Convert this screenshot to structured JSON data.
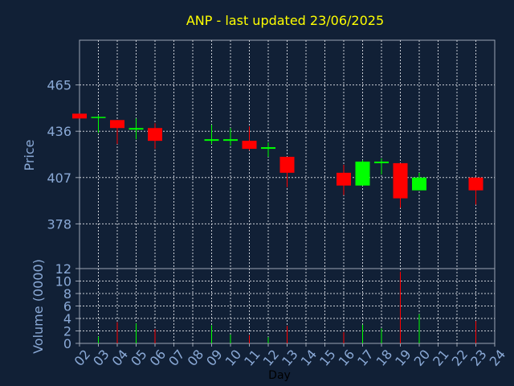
{
  "chart_data": [
    {
      "type": "candlestick",
      "title": "ANP - last updated 23/06/2025",
      "ylabel": "Price",
      "ylim": [
        350,
        493
      ],
      "yticks": [
        378,
        407,
        436,
        465
      ],
      "grid": true,
      "colors": {
        "up": "#00ff00",
        "down": "#ff0000",
        "background": "#112036",
        "title": "#ffff00",
        "axis_text": "#8aa9d6"
      },
      "ohlc": [
        {
          "day": "02",
          "open": 447,
          "high": 447,
          "low": 444,
          "close": 444
        },
        {
          "day": "03",
          "open": 445,
          "high": 446,
          "low": 435,
          "close": 445
        },
        {
          "day": "04",
          "open": 443,
          "high": 443,
          "low": 428,
          "close": 438
        },
        {
          "day": "05",
          "open": 437,
          "high": 444,
          "low": 431,
          "close": 438
        },
        {
          "day": "06",
          "open": 438,
          "high": 441,
          "low": 425,
          "close": 430
        },
        {
          "day": "09",
          "open": 430,
          "high": 440,
          "low": 428,
          "close": 431
        },
        {
          "day": "10",
          "open": 430,
          "high": 438,
          "low": 427,
          "close": 431
        },
        {
          "day": "11",
          "open": 430,
          "high": 439,
          "low": 424,
          "close": 425
        },
        {
          "day": "12",
          "open": 425,
          "high": 429,
          "low": 420,
          "close": 426
        },
        {
          "day": "13",
          "open": 420,
          "high": 420,
          "low": 401,
          "close": 410
        },
        {
          "day": "16",
          "open": 410,
          "high": 415,
          "low": 396,
          "close": 402
        },
        {
          "day": "17",
          "open": 402,
          "high": 418,
          "low": 402,
          "close": 417
        },
        {
          "day": "18",
          "open": 416,
          "high": 419,
          "low": 409,
          "close": 417
        },
        {
          "day": "19",
          "open": 416,
          "high": 416,
          "low": 388,
          "close": 394
        },
        {
          "day": "20",
          "open": 399,
          "high": 410,
          "low": 399,
          "close": 407
        },
        {
          "day": "23",
          "open": 407,
          "high": 407,
          "low": 390,
          "close": 399
        }
      ]
    },
    {
      "type": "bar",
      "ylabel": "Volume (0000)",
      "xlabel": "Day",
      "ylim": [
        0,
        12
      ],
      "yticks": [
        0,
        2,
        4,
        6,
        8,
        10,
        12
      ],
      "grid": true,
      "categories": [
        "02",
        "03",
        "04",
        "05",
        "06",
        "07",
        "08",
        "09",
        "10",
        "11",
        "12",
        "13",
        "14",
        "15",
        "16",
        "17",
        "18",
        "19",
        "20",
        "21",
        "22",
        "23",
        "24"
      ],
      "volumes": [
        {
          "day": "03",
          "value": 1.1,
          "color": "#00ff00"
        },
        {
          "day": "04",
          "value": 3.4,
          "color": "#ff0000"
        },
        {
          "day": "05",
          "value": 3.2,
          "color": "#00ff00"
        },
        {
          "day": "06",
          "value": 2.3,
          "color": "#ff0000"
        },
        {
          "day": "09",
          "value": 2.9,
          "color": "#00ff00"
        },
        {
          "day": "10",
          "value": 1.4,
          "color": "#00ff00"
        },
        {
          "day": "11",
          "value": 1.3,
          "color": "#ff0000"
        },
        {
          "day": "12",
          "value": 1.0,
          "color": "#00ff00"
        },
        {
          "day": "13",
          "value": 2.8,
          "color": "#ff0000"
        },
        {
          "day": "16",
          "value": 1.8,
          "color": "#ff0000"
        },
        {
          "day": "17",
          "value": 3.0,
          "color": "#00ff00"
        },
        {
          "day": "18",
          "value": 2.4,
          "color": "#00ff00"
        },
        {
          "day": "19",
          "value": 11.5,
          "color": "#ff0000"
        },
        {
          "day": "20",
          "value": 4.7,
          "color": "#00ff00"
        },
        {
          "day": "23",
          "value": 3.6,
          "color": "#ff0000"
        }
      ]
    }
  ]
}
